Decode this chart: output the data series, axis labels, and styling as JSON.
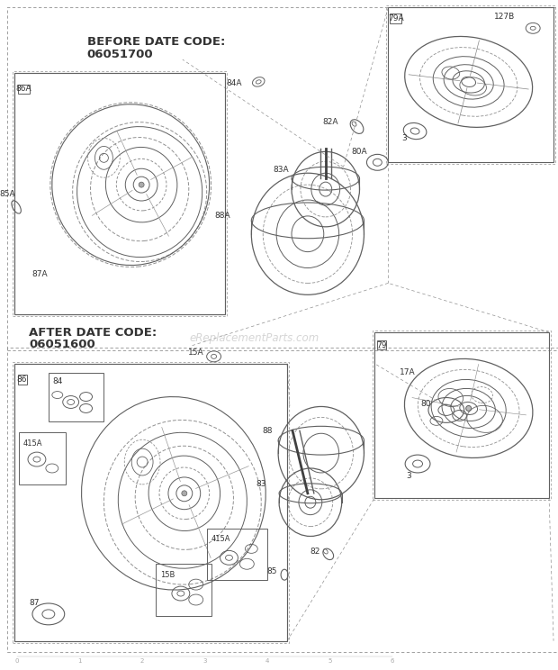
{
  "bg_color": "#ffffff",
  "line_color": "#606060",
  "dark_color": "#404040",
  "label_color": "#333333",
  "dashed_color": "#909090",
  "watermark": "eReplacementParts.com",
  "before_label_line1": "BEFORE DATE CODE:",
  "before_label_line2": "06051700",
  "after_label_line1": "AFTER DATE CODE:",
  "after_label_line2": "06051600",
  "figsize": [
    6.2,
    7.44
  ],
  "dpi": 100
}
